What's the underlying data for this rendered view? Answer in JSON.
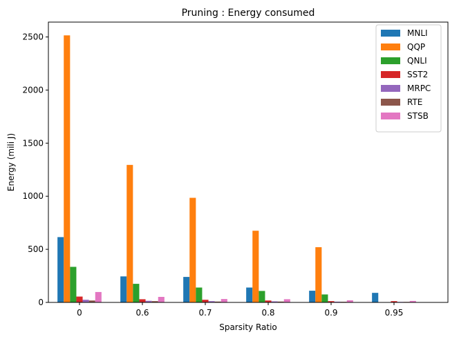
{
  "chart_data": {
    "type": "bar",
    "title": "Pruning : Energy consumed",
    "xlabel": "Sparsity Ratio",
    "ylabel": "Energy (mili J)",
    "categories": [
      "0",
      "0.6",
      "0.7",
      "0.8",
      "0.9",
      "0.95"
    ],
    "ylim": [
      0,
      2640
    ],
    "yticks": [
      0,
      500,
      1000,
      1500,
      2000,
      2500
    ],
    "grid": false,
    "legend_position": "top-right",
    "series": [
      {
        "name": "MNLI",
        "color": "#1f77b4",
        "values": [
          615,
          245,
          240,
          140,
          110,
          90
        ]
      },
      {
        "name": "QQP",
        "color": "#ff7f0e",
        "values": [
          2515,
          1295,
          985,
          675,
          520,
          0
        ]
      },
      {
        "name": "QNLI",
        "color": "#2ca02c",
        "values": [
          335,
          175,
          140,
          108,
          75,
          0
        ]
      },
      {
        "name": "SST2",
        "color": "#d62728",
        "values": [
          55,
          30,
          25,
          18,
          12,
          12
        ]
      },
      {
        "name": "MRPC",
        "color": "#9467bd",
        "values": [
          25,
          15,
          12,
          10,
          7,
          5
        ]
      },
      {
        "name": "RTE",
        "color": "#8c564b",
        "values": [
          18,
          12,
          8,
          8,
          6,
          5
        ]
      },
      {
        "name": "STSB",
        "color": "#e377c2",
        "values": [
          98,
          52,
          32,
          30,
          20,
          14
        ]
      }
    ]
  }
}
